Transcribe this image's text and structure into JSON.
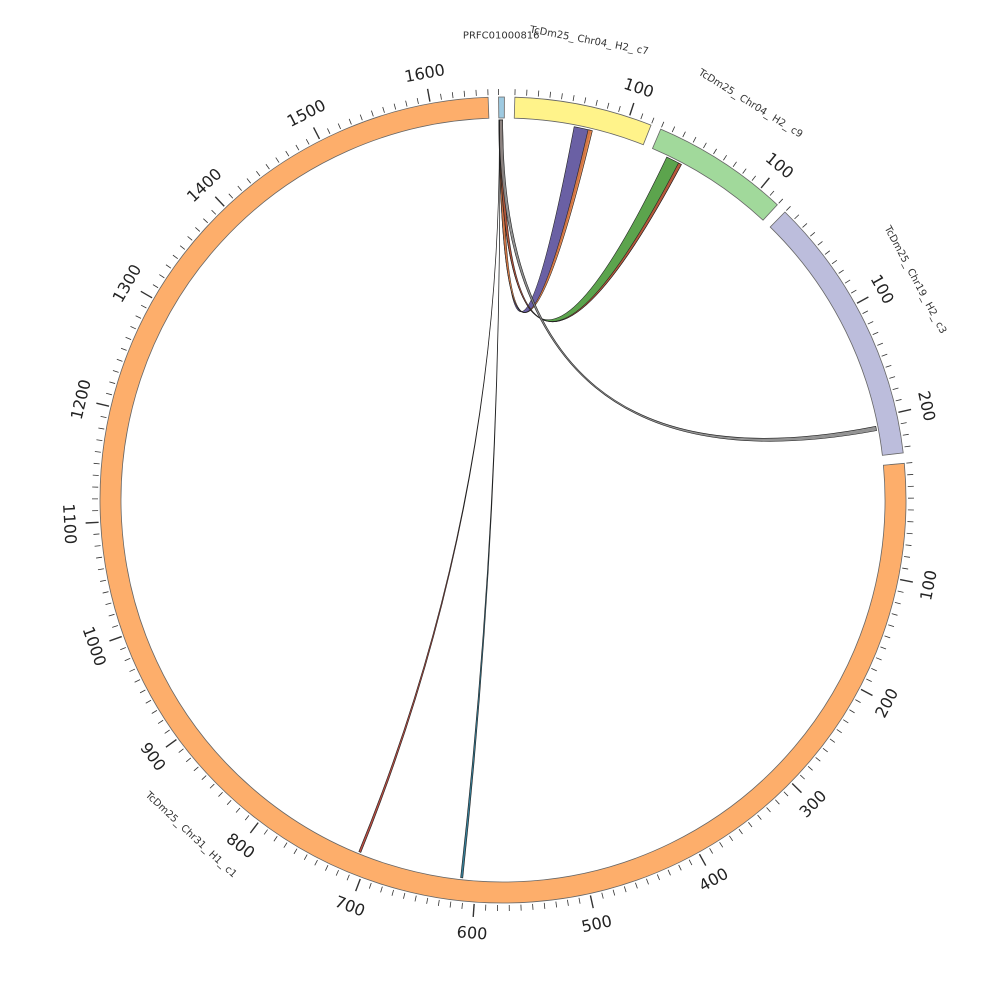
{
  "chart_data": {
    "type": "circos",
    "title": "",
    "segments": [
      {
        "id": "PRFC01000816",
        "label": "PRFC01000816",
        "length": 5,
        "color": "#9ecae1"
      },
      {
        "id": "c7",
        "label": "TcDm25_ Chr04_ H2_ c7",
        "length": 120,
        "color": "#fff38a"
      },
      {
        "id": "c9",
        "label": "TcDm25_ Chr04_ H2_ c9",
        "length": 120,
        "color": "#a1d99b"
      },
      {
        "id": "c3",
        "label": "TcDm25_ Chr19_ H2_ c3",
        "length": 235,
        "color": "#bcbddc"
      },
      {
        "id": "c1",
        "label": "TcDm25_ Chr31_ H1_ c1",
        "length": 1650,
        "color": "#fdae6b"
      }
    ],
    "tick_step": 10,
    "label_step": 100,
    "links": [
      {
        "source": {
          "seg": "PRFC01000816",
          "start": 0,
          "end": 3.5
        },
        "target": {
          "seg": "c7",
          "start": 55,
          "end": 70
        },
        "color": "#5a4f9a"
      },
      {
        "source": {
          "seg": "PRFC01000816",
          "start": 0,
          "end": 3.5
        },
        "target": {
          "seg": "c7",
          "start": 68,
          "end": 72
        },
        "color": "#e07a3e"
      },
      {
        "source": {
          "seg": "PRFC01000816",
          "start": 0.3,
          "end": 3.5
        },
        "target": {
          "seg": "c9",
          "start": 15,
          "end": 30
        },
        "color": "#4a9a3a"
      },
      {
        "source": {
          "seg": "PRFC01000816",
          "start": 0.5,
          "end": 3.5
        },
        "target": {
          "seg": "c9",
          "start": 27,
          "end": 30
        },
        "color": "#c0503a"
      },
      {
        "source": {
          "seg": "PRFC01000816",
          "start": 0.1,
          "end": 3.5
        },
        "target": {
          "seg": "c3",
          "start": 208,
          "end": 212
        },
        "color": "#888888"
      },
      {
        "source": {
          "seg": "PRFC01000816",
          "start": 0.4,
          "end": 0.5
        },
        "target": {
          "seg": "c1",
          "start": 708,
          "end": 710
        },
        "color": "#b03a2e"
      },
      {
        "source": {
          "seg": "PRFC01000816",
          "start": 0.6,
          "end": 0.7
        },
        "target": {
          "seg": "c1",
          "start": 612,
          "end": 614
        },
        "color": "#1f6f8b"
      }
    ]
  }
}
